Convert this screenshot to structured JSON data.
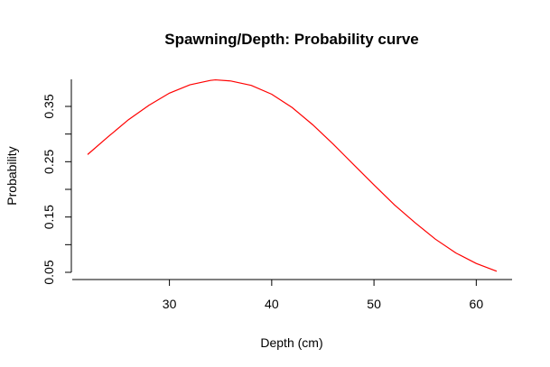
{
  "chart_data": {
    "type": "line",
    "title": "Spawning/Depth: Probability curve",
    "xlabel": "Depth (cm)",
    "ylabel": "Probability",
    "xlim": [
      22,
      62
    ],
    "ylim": [
      0.05,
      0.4
    ],
    "x_ticks": [
      30,
      40,
      50,
      60
    ],
    "x_tick_labels": [
      "30",
      "40",
      "50",
      "60"
    ],
    "y_ticks": [
      0.05,
      0.1,
      0.15,
      0.2,
      0.25,
      0.3,
      0.35
    ],
    "y_tick_labels": [
      "0.05",
      "",
      "0.15",
      "",
      "0.25",
      "",
      "0.35"
    ],
    "grid": false,
    "legend": "none",
    "series": [
      {
        "color": "#ff0000",
        "x": [
          22,
          24,
          26,
          28,
          30,
          32,
          34,
          34.5,
          36,
          38,
          40,
          42,
          44,
          46,
          48,
          50,
          52,
          54,
          56,
          58,
          60,
          62
        ],
        "y": [
          0.263,
          0.295,
          0.326,
          0.352,
          0.374,
          0.389,
          0.397,
          0.398,
          0.396,
          0.388,
          0.372,
          0.348,
          0.317,
          0.282,
          0.245,
          0.208,
          0.172,
          0.14,
          0.11,
          0.085,
          0.066,
          0.052
        ]
      }
    ]
  }
}
